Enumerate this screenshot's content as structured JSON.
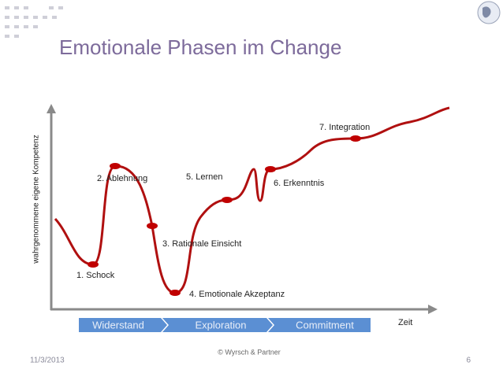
{
  "header": {
    "title": "Emotionale Phasen im Change"
  },
  "axes": {
    "y_label": "wahrgenommene eigene Kompetenz",
    "x_label": "Zeit"
  },
  "phases": [
    {
      "label": "1. Schock"
    },
    {
      "label": "2. Ablehnung"
    },
    {
      "label": "3. Rationale Einsicht"
    },
    {
      "label": "4. Emotionale Akzeptanz"
    },
    {
      "label": "5. Lernen"
    },
    {
      "label": "6. Erkenntnis"
    },
    {
      "label": "7. Integration"
    }
  ],
  "stages": [
    {
      "label": "Widerstand"
    },
    {
      "label": "Exploration"
    },
    {
      "label": "Commitment"
    }
  ],
  "footer": {
    "date": "11/3/2013",
    "copyright": "© Wyrsch & Partner",
    "page": "6"
  }
}
